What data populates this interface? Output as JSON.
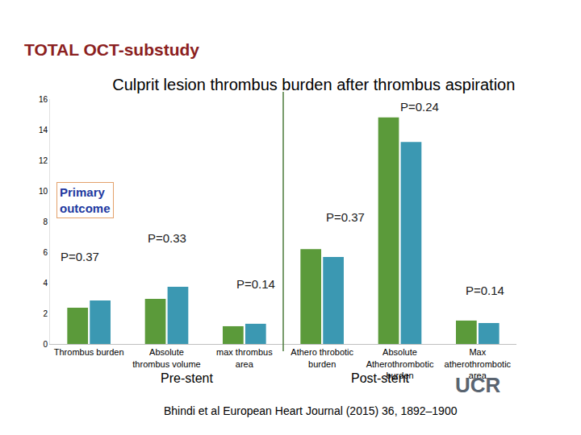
{
  "chart_data": {
    "type": "bar",
    "header": "TOTAL OCT-substudy",
    "title": "Culprit lesion thrombus burden after thrombus aspiration",
    "categories": [
      "Thrombus burden",
      "Absolute\nthrombus volume",
      "max thrombus\narea",
      "Athero throbotic\nburden",
      "Absolute\nAtherothrombotic\nburden",
      "Max\natherothrombotic\narea"
    ],
    "series": [
      {
        "color": "#5b9a3a",
        "values": [
          2.37,
          2.95,
          1.16,
          6.2,
          14.8,
          1.53
        ]
      },
      {
        "color": "#3b98b2",
        "values": [
          2.84,
          3.74,
          1.32,
          5.68,
          13.2,
          1.37
        ]
      }
    ],
    "ylim": [
      0,
      16
    ],
    "yticks": [
      0,
      2,
      4,
      6,
      8,
      10,
      12,
      14,
      16
    ],
    "grid": false,
    "annotations": {
      "p_values": [
        "P=0.37",
        "P=0.33",
        "P=0.14",
        "P=0.37",
        "P=0.24",
        "P=0.14"
      ],
      "primary_outcome": "Primary\noutcome",
      "groups": [
        "Pre-stent",
        "Post-stent"
      ],
      "source": "Bhindi et al European Heart Journal (2015) 36, 1892–1900",
      "logo": "UCR"
    }
  }
}
